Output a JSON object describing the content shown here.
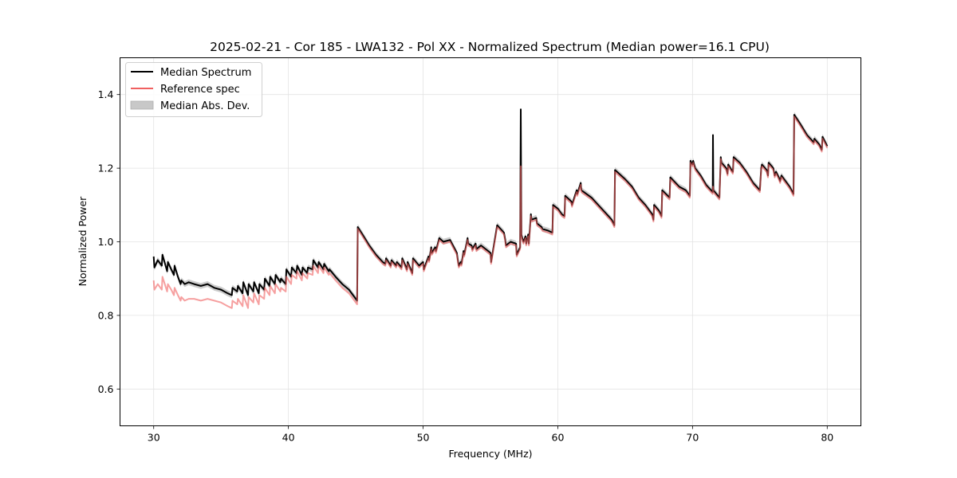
{
  "chart_data": {
    "type": "line",
    "title": "2025-02-21 - Cor 185 - LWA132 - Pol XX - Normalized Spectrum (Median power=16.1 CPU)",
    "xlabel": "Frequency (MHz)",
    "ylabel": "Normalized Power",
    "xlim": [
      27.5,
      82.5
    ],
    "ylim": [
      0.5,
      1.5
    ],
    "xticks": [
      30,
      40,
      50,
      60,
      70,
      80
    ],
    "xtick_labels": [
      "30",
      "40",
      "50",
      "60",
      "70",
      "80"
    ],
    "yticks": [
      0.6,
      0.8,
      1.0,
      1.2,
      1.4
    ],
    "ytick_labels": [
      "0.6",
      "0.8",
      "1.0",
      "1.2",
      "1.4"
    ],
    "grid": true,
    "legend_position": "top-left",
    "legend": [
      {
        "label": "Median Spectrum",
        "kind": "line",
        "color": "#000000"
      },
      {
        "label": "Reference spec",
        "kind": "line",
        "color": "#f06060"
      },
      {
        "label": "Median Abs. Dev.",
        "kind": "patch",
        "color": "#c8c8c8"
      }
    ],
    "mad_halfwidth": 0.008,
    "series": [
      {
        "name": "Median Spectrum",
        "color": "#000000",
        "x": [
          30.0,
          30.05,
          30.3,
          30.6,
          30.65,
          31.0,
          31.05,
          31.3,
          31.5,
          31.55,
          31.8,
          32.0,
          32.05,
          32.3,
          32.6,
          33.0,
          33.5,
          34.0,
          34.5,
          35.0,
          35.5,
          35.8,
          35.85,
          36.2,
          36.25,
          36.6,
          36.65,
          37.0,
          37.05,
          37.4,
          37.45,
          37.8,
          37.85,
          38.2,
          38.25,
          38.6,
          38.65,
          39.0,
          39.05,
          39.4,
          39.45,
          39.8,
          39.85,
          40.2,
          40.25,
          40.6,
          40.65,
          41.0,
          41.05,
          41.4,
          41.45,
          41.8,
          41.85,
          42.2,
          42.25,
          42.6,
          42.65,
          43.0,
          43.05,
          43.5,
          44.0,
          44.5,
          45.1,
          45.15,
          45.5,
          46.0,
          46.5,
          47.0,
          47.2,
          47.25,
          47.6,
          47.65,
          48.0,
          48.05,
          48.4,
          48.45,
          48.8,
          48.85,
          49.2,
          49.25,
          49.7,
          50.0,
          50.05,
          50.4,
          50.45,
          50.6,
          50.65,
          50.9,
          50.95,
          51.2,
          51.5,
          52.0,
          52.5,
          52.6,
          52.65,
          52.8,
          52.85,
          53.0,
          53.05,
          53.3,
          53.35,
          53.6,
          53.65,
          53.9,
          53.95,
          54.3,
          55.0,
          55.05,
          55.5,
          56.0,
          56.1,
          56.15,
          56.5,
          56.9,
          56.95,
          57.2,
          57.25,
          57.3,
          57.4,
          57.45,
          57.6,
          57.65,
          57.8,
          57.85,
          58.0,
          58.05,
          58.4,
          58.45,
          58.8,
          58.85,
          59.3,
          59.6,
          59.65,
          60.0,
          60.3,
          60.5,
          60.55,
          61.0,
          61.05,
          61.4,
          61.45,
          61.7,
          61.75,
          62.5,
          63.0,
          63.5,
          64.0,
          64.2,
          64.25,
          65.0,
          65.5,
          66.0,
          66.5,
          67.0,
          67.1,
          67.15,
          67.5,
          67.7,
          67.75,
          68.3,
          68.35,
          69.0,
          69.5,
          69.8,
          69.85,
          70.0,
          70.05,
          70.2,
          70.6,
          71.0,
          71.5,
          71.52,
          71.55,
          72.0,
          72.1,
          72.15,
          72.5,
          72.6,
          72.65,
          72.9,
          73.0,
          73.05,
          73.5,
          74.0,
          74.5,
          75.0,
          75.1,
          75.15,
          75.5,
          75.6,
          75.65,
          76.0,
          76.1,
          76.2,
          76.4,
          76.5,
          76.6,
          76.8,
          77.2,
          77.5,
          77.55,
          78.0,
          78.5,
          79.0,
          79.05,
          79.4,
          79.6,
          79.65,
          80.0
        ],
        "y": [
          0.96,
          0.93,
          0.95,
          0.935,
          0.965,
          0.92,
          0.945,
          0.925,
          0.91,
          0.935,
          0.905,
          0.885,
          0.895,
          0.885,
          0.89,
          0.885,
          0.88,
          0.885,
          0.875,
          0.87,
          0.86,
          0.855,
          0.875,
          0.865,
          0.88,
          0.86,
          0.89,
          0.855,
          0.885,
          0.865,
          0.89,
          0.86,
          0.885,
          0.87,
          0.9,
          0.88,
          0.905,
          0.885,
          0.91,
          0.89,
          0.9,
          0.885,
          0.925,
          0.905,
          0.93,
          0.915,
          0.935,
          0.91,
          0.93,
          0.915,
          0.93,
          0.925,
          0.95,
          0.93,
          0.945,
          0.925,
          0.94,
          0.92,
          0.925,
          0.905,
          0.885,
          0.87,
          0.84,
          1.04,
          1.02,
          0.99,
          0.965,
          0.945,
          0.94,
          0.955,
          0.935,
          0.95,
          0.935,
          0.945,
          0.93,
          0.955,
          0.925,
          0.945,
          0.915,
          0.955,
          0.935,
          0.945,
          0.925,
          0.96,
          0.95,
          0.985,
          0.97,
          0.985,
          0.975,
          1.01,
          1.0,
          1.005,
          0.97,
          0.945,
          0.935,
          0.945,
          0.94,
          0.975,
          0.965,
          1.01,
          0.995,
          0.99,
          0.98,
          0.995,
          0.98,
          0.99,
          0.97,
          0.945,
          1.045,
          1.025,
          1.005,
          0.99,
          1.0,
          0.995,
          0.965,
          0.985,
          1.36,
          1.02,
          1.005,
          1.0,
          1.015,
          0.995,
          1.02,
          0.995,
          1.075,
          1.06,
          1.065,
          1.05,
          1.04,
          1.035,
          1.03,
          1.025,
          1.1,
          1.09,
          1.075,
          1.07,
          1.125,
          1.11,
          1.1,
          1.14,
          1.13,
          1.16,
          1.14,
          1.12,
          1.1,
          1.08,
          1.06,
          1.045,
          1.195,
          1.17,
          1.15,
          1.12,
          1.1,
          1.075,
          1.06,
          1.1,
          1.085,
          1.07,
          1.14,
          1.12,
          1.175,
          1.15,
          1.14,
          1.125,
          1.22,
          1.21,
          1.22,
          1.2,
          1.18,
          1.155,
          1.135,
          1.29,
          1.14,
          1.12,
          1.23,
          1.215,
          1.2,
          1.185,
          1.21,
          1.195,
          1.19,
          1.23,
          1.215,
          1.19,
          1.16,
          1.14,
          1.2,
          1.21,
          1.195,
          1.18,
          1.215,
          1.2,
          1.18,
          1.19,
          1.175,
          1.165,
          1.18,
          1.17,
          1.15,
          1.13,
          1.345,
          1.32,
          1.29,
          1.27,
          1.28,
          1.265,
          1.25,
          1.285,
          1.26
        ]
      },
      {
        "name": "Reference spec",
        "color": "#f06060",
        "x": [
          30.0,
          30.05,
          30.3,
          30.6,
          30.65,
          31.0,
          31.05,
          31.3,
          31.5,
          31.55,
          31.8,
          32.0,
          32.05,
          32.3,
          32.6,
          33.0,
          33.5,
          34.0,
          34.5,
          35.0,
          35.5,
          35.8,
          35.85,
          36.2,
          36.25,
          36.6,
          36.65,
          37.0,
          37.05,
          37.4,
          37.45,
          37.8,
          37.85,
          38.2,
          38.25,
          38.6,
          38.65,
          39.0,
          39.05,
          39.4,
          39.45,
          39.8,
          39.85,
          40.2,
          40.25,
          40.6,
          40.65,
          41.0,
          41.05,
          41.4,
          41.45,
          41.8,
          41.85,
          42.2,
          42.25,
          42.6,
          42.65,
          43.0,
          43.05,
          43.5,
          44.0,
          44.5,
          45.1,
          45.15,
          45.5,
          46.0,
          46.5,
          47.0,
          47.2,
          47.25,
          47.6,
          47.65,
          48.0,
          48.05,
          48.4,
          48.45,
          48.8,
          48.85,
          49.2,
          49.25,
          49.7,
          50.0,
          50.05,
          50.4,
          50.45,
          50.6,
          50.65,
          50.9,
          50.95,
          51.2,
          51.5,
          52.0,
          52.5,
          52.6,
          52.65,
          52.8,
          52.85,
          53.0,
          53.05,
          53.3,
          53.35,
          53.6,
          53.65,
          53.9,
          53.95,
          54.3,
          55.0,
          55.05,
          55.5,
          56.0,
          56.1,
          56.15,
          56.5,
          56.9,
          56.95,
          57.2,
          57.25,
          57.3,
          57.4,
          57.45,
          57.6,
          57.65,
          57.8,
          57.85,
          58.0,
          58.05,
          58.4,
          58.45,
          58.8,
          58.85,
          59.3,
          59.6,
          59.65,
          60.0,
          60.3,
          60.5,
          60.55,
          61.0,
          61.05,
          61.4,
          61.45,
          61.7,
          61.75,
          62.5,
          63.0,
          63.5,
          64.0,
          64.2,
          64.25,
          65.0,
          65.5,
          66.0,
          66.5,
          67.0,
          67.1,
          67.15,
          67.5,
          67.7,
          67.75,
          68.3,
          68.35,
          69.0,
          69.5,
          69.8,
          69.85,
          70.0,
          70.05,
          70.2,
          70.6,
          71.0,
          71.5,
          71.52,
          71.55,
          72.0,
          72.1,
          72.15,
          72.5,
          72.6,
          72.65,
          72.9,
          73.0,
          73.05,
          73.5,
          74.0,
          74.5,
          75.0,
          75.1,
          75.15,
          75.5,
          75.6,
          75.65,
          76.0,
          76.1,
          76.2,
          76.4,
          76.5,
          76.6,
          76.8,
          77.2,
          77.5,
          77.55,
          78.0,
          78.5,
          79.0,
          79.05,
          79.4,
          79.6,
          79.65,
          80.0
        ],
        "y": [
          0.895,
          0.87,
          0.885,
          0.87,
          0.905,
          0.865,
          0.885,
          0.87,
          0.855,
          0.875,
          0.855,
          0.84,
          0.85,
          0.84,
          0.845,
          0.845,
          0.84,
          0.845,
          0.84,
          0.835,
          0.825,
          0.82,
          0.84,
          0.83,
          0.845,
          0.825,
          0.855,
          0.82,
          0.85,
          0.835,
          0.86,
          0.83,
          0.855,
          0.845,
          0.875,
          0.855,
          0.88,
          0.86,
          0.885,
          0.865,
          0.875,
          0.865,
          0.905,
          0.885,
          0.91,
          0.9,
          0.92,
          0.895,
          0.915,
          0.9,
          0.915,
          0.91,
          0.935,
          0.915,
          0.935,
          0.915,
          0.93,
          0.91,
          0.915,
          0.895,
          0.875,
          0.86,
          0.83,
          1.035,
          1.015,
          0.985,
          0.96,
          0.94,
          0.935,
          0.95,
          0.93,
          0.945,
          0.93,
          0.94,
          0.925,
          0.95,
          0.92,
          0.94,
          0.91,
          0.95,
          0.93,
          0.94,
          0.92,
          0.955,
          0.945,
          0.98,
          0.965,
          0.98,
          0.97,
          1.005,
          0.995,
          1.0,
          0.965,
          0.94,
          0.93,
          0.94,
          0.935,
          0.97,
          0.96,
          1.005,
          0.99,
          0.985,
          0.975,
          0.99,
          0.975,
          0.985,
          0.965,
          0.94,
          1.04,
          1.02,
          1.0,
          0.985,
          0.995,
          0.99,
          0.96,
          0.98,
          1.205,
          1.015,
          1.0,
          0.995,
          1.01,
          0.99,
          1.015,
          0.99,
          1.07,
          1.055,
          1.06,
          1.045,
          1.035,
          1.03,
          1.025,
          1.02,
          1.095,
          1.085,
          1.07,
          1.065,
          1.12,
          1.105,
          1.095,
          1.135,
          1.125,
          1.155,
          1.135,
          1.115,
          1.095,
          1.075,
          1.055,
          1.04,
          1.19,
          1.165,
          1.145,
          1.115,
          1.095,
          1.07,
          1.055,
          1.095,
          1.08,
          1.065,
          1.135,
          1.115,
          1.17,
          1.145,
          1.135,
          1.12,
          1.215,
          1.205,
          1.215,
          1.195,
          1.175,
          1.15,
          1.13,
          1.15,
          1.135,
          1.115,
          1.225,
          1.21,
          1.195,
          1.18,
          1.205,
          1.19,
          1.185,
          1.225,
          1.21,
          1.185,
          1.155,
          1.135,
          1.195,
          1.205,
          1.19,
          1.175,
          1.21,
          1.195,
          1.175,
          1.185,
          1.17,
          1.16,
          1.175,
          1.165,
          1.145,
          1.125,
          1.34,
          1.315,
          1.285,
          1.265,
          1.275,
          1.26,
          1.245,
          1.28,
          1.255
        ]
      }
    ]
  }
}
